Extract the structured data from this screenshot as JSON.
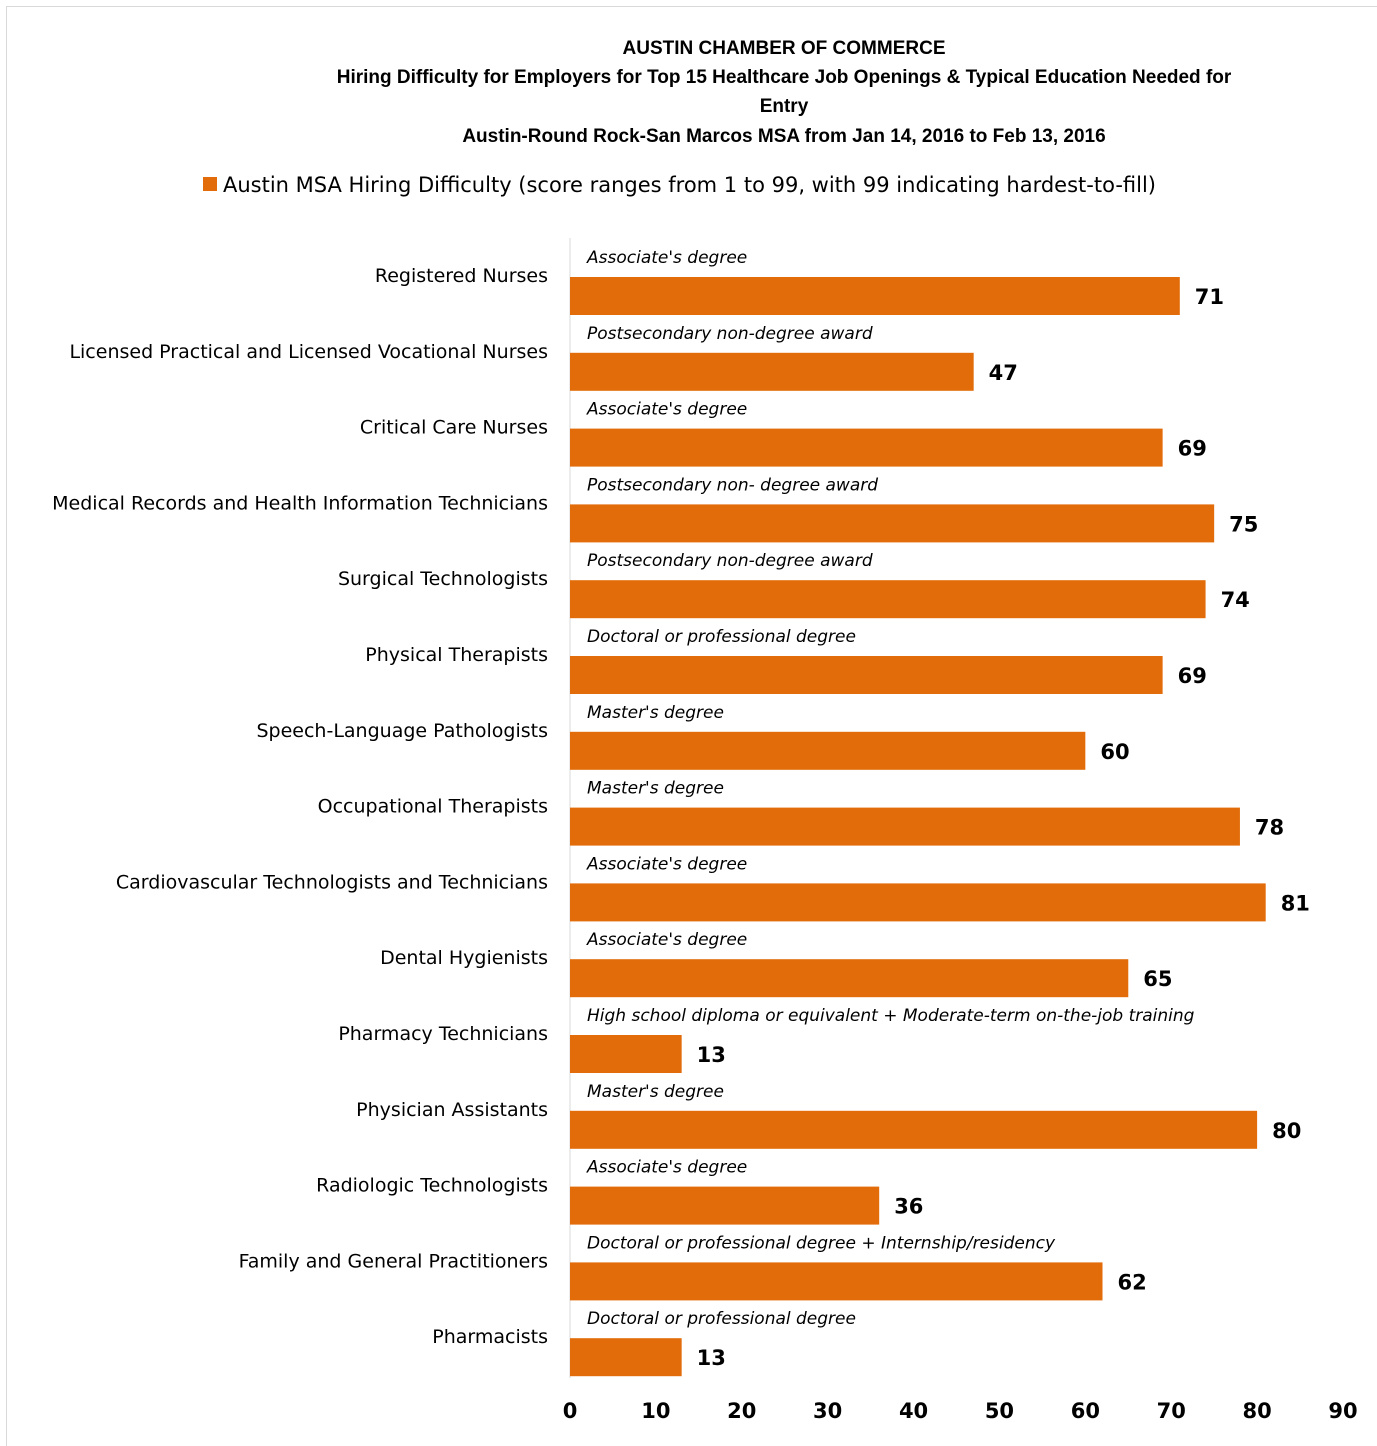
{
  "chart_data": {
    "type": "bar",
    "orientation": "horizontal",
    "title": [
      "AUSTIN CHAMBER OF COMMERCE",
      "Hiring Difficulty for Employers for Top 15 Healthcare Job Openings & Typical Education Needed for",
      "Entry",
      "Austin-Round Rock-San Marcos MSA from Jan 14, 2016 to Feb 13, 2016"
    ],
    "legend": {
      "placement": "top",
      "entries": [
        "Austin MSA Hiring Difficulty (score ranges from 1 to 99, with 99 indicating hardest-to-fill)"
      ]
    },
    "categories": [
      "Registered Nurses",
      "Licensed Practical and Licensed Vocational Nurses",
      "Critical Care Nurses",
      "Medical Records and Health Information Technicians",
      "Surgical Technologists",
      "Physical Therapists",
      "Speech-Language Pathologists",
      "Occupational Therapists",
      "Cardiovascular Technologists and Technicians",
      "Dental Hygienists",
      "Pharmacy Technicians",
      "Physician Assistants",
      "Radiologic Technologists",
      "Family and General Practitioners",
      "Pharmacists"
    ],
    "series": [
      {
        "name": "Austin MSA Hiring Difficulty (score ranges from 1 to 99, with 99 indicating hardest-to-fill)",
        "color": "#E36C0A",
        "values": [
          71,
          47,
          69,
          75,
          74,
          69,
          60,
          78,
          81,
          65,
          13,
          80,
          36,
          62,
          13
        ]
      }
    ],
    "annotations": [
      "Associate's degree",
      "Postsecondary non-degree award",
      "Associate's degree",
      "Postsecondary non- degree award",
      "Postsecondary non-degree award",
      "Doctoral or professional degree",
      "Master's degree",
      "Master's degree",
      "Associate's degree",
      "Associate's degree",
      "High school diploma or equivalent + Moderate-term on-the-job training",
      "Master's degree",
      "Associate's degree",
      "Doctoral or professional degree + Internship/residency",
      "Doctoral or professional degree"
    ],
    "xlim": [
      0,
      90
    ],
    "xticks": [
      0,
      10,
      20,
      30,
      40,
      50,
      60,
      70,
      80,
      90
    ],
    "grid": false
  }
}
